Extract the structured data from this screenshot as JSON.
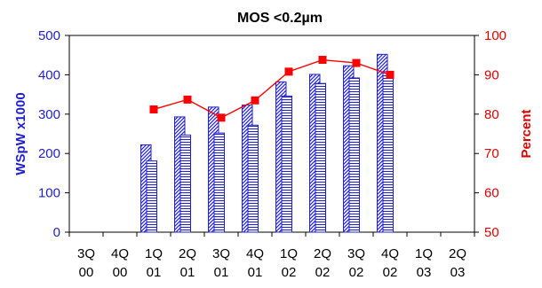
{
  "chart_data": {
    "type": "bar",
    "title": "MOS <0.2µm",
    "categories": [
      [
        "3Q",
        "00"
      ],
      [
        "4Q",
        "00"
      ],
      [
        "1Q",
        "01"
      ],
      [
        "2Q",
        "01"
      ],
      [
        "3Q",
        "01"
      ],
      [
        "4Q",
        "01"
      ],
      [
        "1Q",
        "02"
      ],
      [
        "2Q",
        "02"
      ],
      [
        "3Q",
        "02"
      ],
      [
        "4Q",
        "02"
      ],
      [
        "1Q",
        "03"
      ],
      [
        "2Q",
        "03"
      ]
    ],
    "ylabel": "WSpW x1000",
    "ylim": [
      0,
      500
    ],
    "yticks": [
      0,
      100,
      200,
      300,
      400,
      500
    ],
    "y2label": "Percent",
    "y2lim": [
      50,
      100
    ],
    "y2ticks": [
      50,
      60,
      70,
      80,
      90,
      100
    ],
    "grid": false,
    "legend": "none",
    "series": [
      {
        "kind": "bar",
        "pattern": "diagonal-hatch",
        "axis": "left",
        "values": [
          null,
          null,
          222,
          293,
          318,
          323,
          382,
          401,
          423,
          452,
          null,
          null
        ]
      },
      {
        "kind": "bar",
        "pattern": "horizontal-hatch",
        "axis": "left",
        "values": [
          null,
          null,
          181,
          247,
          252,
          272,
          346,
          378,
          392,
          408,
          null,
          null
        ]
      },
      {
        "kind": "line",
        "marker": "square",
        "axis": "right",
        "values": [
          null,
          null,
          81.2,
          83.7,
          79.1,
          83.5,
          90.8,
          93.8,
          93.0,
          90.0,
          null,
          null
        ]
      }
    ],
    "colors": {
      "bars": "#2222cc",
      "line": "#ff0000",
      "left_axis_text": "#1f1fcc",
      "right_axis_text": "#e00000",
      "frame": "#000000"
    }
  }
}
